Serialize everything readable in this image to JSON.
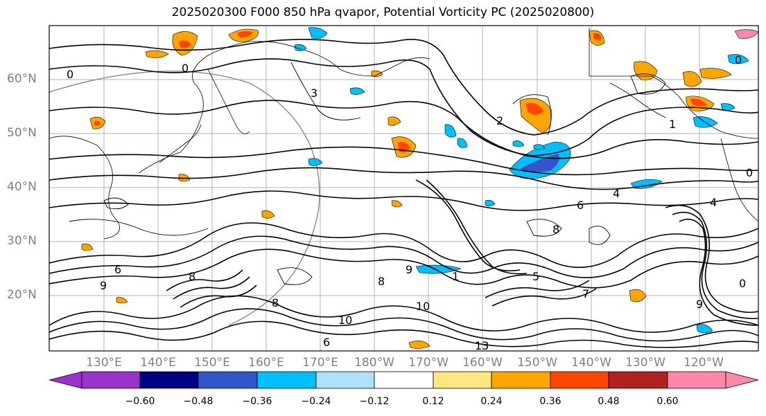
{
  "title": "2025020300 F000 850 hPa qvapor, Potential Vorticity PC (2025020800)",
  "map": {
    "region": "North Pacific",
    "projection": "PlateCarree",
    "lon_range": [
      "125°E",
      "115°W"
    ],
    "lat_range": [
      "10°N",
      "70°N"
    ],
    "grid": true,
    "contour_color": "#000000",
    "reference_circle_color": "#808080",
    "lat_labels": [
      "60°N",
      "50°N",
      "40°N",
      "30°N",
      "20°N"
    ],
    "lon_labels": [
      "130°E",
      "140°E",
      "150°E",
      "160°E",
      "170°E",
      "180°W",
      "170°W",
      "160°W",
      "150°W",
      "140°W",
      "130°W",
      "120°W"
    ],
    "contour_labels": [
      "0",
      "3",
      "2",
      "4",
      "6",
      "8",
      "9",
      "1",
      "10",
      "13",
      "5",
      "7"
    ]
  },
  "colorbar": {
    "colors": [
      "#9933cc",
      "#000080",
      "#3355cc",
      "#00bfff",
      "#b0e0ff",
      "#ffffff",
      "#ffe680",
      "#ffa500",
      "#ff4500",
      "#b22222",
      "#ff88aa"
    ],
    "ticks": [
      "−0.60",
      "−0.48",
      "−0.36",
      "−0.24",
      "−0.12",
      "0.12",
      "0.24",
      "0.36",
      "0.48",
      "0.60"
    ],
    "extend": "both"
  }
}
